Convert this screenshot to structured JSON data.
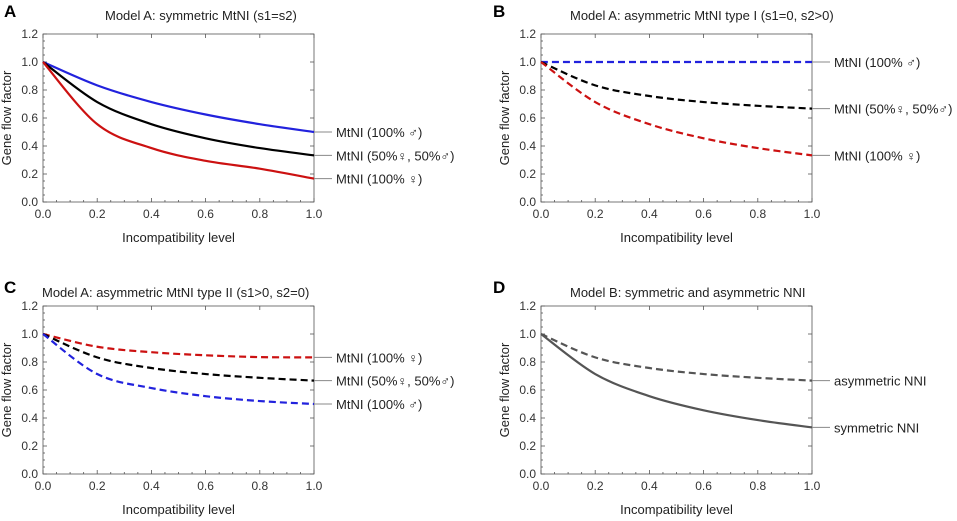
{
  "chart_data": [
    {
      "panel": "A",
      "type": "line",
      "title": "Model A: symmetric MtNI (s1=s2)",
      "xlabel": "Incompatibility level",
      "ylabel": "Gene flow factor",
      "xlim": [
        0,
        1
      ],
      "ylim": [
        0,
        1.2
      ],
      "xticks": [
        "0.0",
        "0.2",
        "0.4",
        "0.6",
        "0.8",
        "1.0"
      ],
      "yticks": [
        "0.0",
        "0.2",
        "0.4",
        "0.6",
        "0.8",
        "1.0",
        "1.2"
      ],
      "x": [
        0.0,
        0.2,
        0.4,
        0.6,
        0.8,
        1.0
      ],
      "series": [
        {
          "name": "MtNI (100% ♂)",
          "color": "#2222dd",
          "dash": "solid",
          "values": [
            1.0,
            0.833,
            0.714,
            0.625,
            0.556,
            0.5
          ]
        },
        {
          "name": "MtNI (50%♀, 50%♂)",
          "color": "#000000",
          "dash": "solid",
          "values": [
            1.0,
            0.714,
            0.556,
            0.455,
            0.385,
            0.333
          ]
        },
        {
          "name": "MtNI (100% ♀)",
          "color": "#cc1111",
          "dash": "solid",
          "values": [
            1.0,
            0.556,
            0.385,
            0.294,
            0.238,
            0.167
          ]
        }
      ]
    },
    {
      "panel": "B",
      "type": "line",
      "title": "Model A: asymmetric MtNI type I  (s1=0, s2>0)",
      "xlabel": "Incompatibility level",
      "ylabel": "Gene flow factor",
      "xlim": [
        0,
        1
      ],
      "ylim": [
        0,
        1.2
      ],
      "xticks": [
        "0.0",
        "0.2",
        "0.4",
        "0.6",
        "0.8",
        "1.0"
      ],
      "yticks": [
        "0.0",
        "0.2",
        "0.4",
        "0.6",
        "0.8",
        "1.0",
        "1.2"
      ],
      "x": [
        0.0,
        0.2,
        0.4,
        0.6,
        0.8,
        1.0
      ],
      "series": [
        {
          "name": "MtNI (100% ♂)",
          "color": "#2222dd",
          "dash": "dashed",
          "values": [
            1.0,
            1.0,
            1.0,
            1.0,
            1.0,
            1.0
          ]
        },
        {
          "name": "MtNI (50%♀, 50%♂)",
          "color": "#000000",
          "dash": "dashed",
          "values": [
            1.0,
            0.833,
            0.757,
            0.714,
            0.687,
            0.667
          ]
        },
        {
          "name": "MtNI (100% ♀)",
          "color": "#cc1111",
          "dash": "dashed",
          "values": [
            1.0,
            0.714,
            0.556,
            0.455,
            0.385,
            0.333
          ]
        }
      ]
    },
    {
      "panel": "C",
      "type": "line",
      "title": "Model A: asymmetric MtNI type II  (s1>0, s2=0)",
      "xlabel": "Incompatibility level",
      "ylabel": "Gene flow factor",
      "xlim": [
        0,
        1
      ],
      "ylim": [
        0,
        1.2
      ],
      "xticks": [
        "0.0",
        "0.2",
        "0.4",
        "0.6",
        "0.8",
        "1.0"
      ],
      "yticks": [
        "0.0",
        "0.2",
        "0.4",
        "0.6",
        "0.8",
        "1.0",
        "1.2"
      ],
      "x": [
        0.0,
        0.2,
        0.4,
        0.6,
        0.8,
        1.0
      ],
      "series": [
        {
          "name": "MtNI (100% ♀)",
          "color": "#cc1111",
          "dash": "dashed",
          "values": [
            1.0,
            0.909,
            0.87,
            0.848,
            0.835,
            0.833
          ]
        },
        {
          "name": "MtNI (50%♀, 50%♂)",
          "color": "#000000",
          "dash": "dashed",
          "values": [
            1.0,
            0.833,
            0.757,
            0.714,
            0.687,
            0.667
          ]
        },
        {
          "name": "MtNI (100% ♂)",
          "color": "#2222dd",
          "dash": "dashed",
          "values": [
            1.0,
            0.714,
            0.614,
            0.556,
            0.521,
            0.5
          ]
        }
      ]
    },
    {
      "panel": "D",
      "type": "line",
      "title": "Model B: symmetric and asymmetric NNI",
      "xlabel": "Incompatibility level",
      "ylabel": "Gene flow factor",
      "xlim": [
        0,
        1
      ],
      "ylim": [
        0,
        1.2
      ],
      "xticks": [
        "0.0",
        "0.2",
        "0.4",
        "0.6",
        "0.8",
        "1.0"
      ],
      "yticks": [
        "0.0",
        "0.2",
        "0.4",
        "0.6",
        "0.8",
        "1.0",
        "1.2"
      ],
      "x": [
        0.0,
        0.2,
        0.4,
        0.6,
        0.8,
        1.0
      ],
      "series": [
        {
          "name": "asymmetric NNI",
          "color": "#555555",
          "dash": "dashed",
          "values": [
            1.0,
            0.833,
            0.757,
            0.714,
            0.687,
            0.667
          ]
        },
        {
          "name": "symmetric NNI",
          "color": "#555555",
          "dash": "solid",
          "values": [
            1.0,
            0.714,
            0.556,
            0.455,
            0.385,
            0.333
          ]
        }
      ]
    }
  ]
}
